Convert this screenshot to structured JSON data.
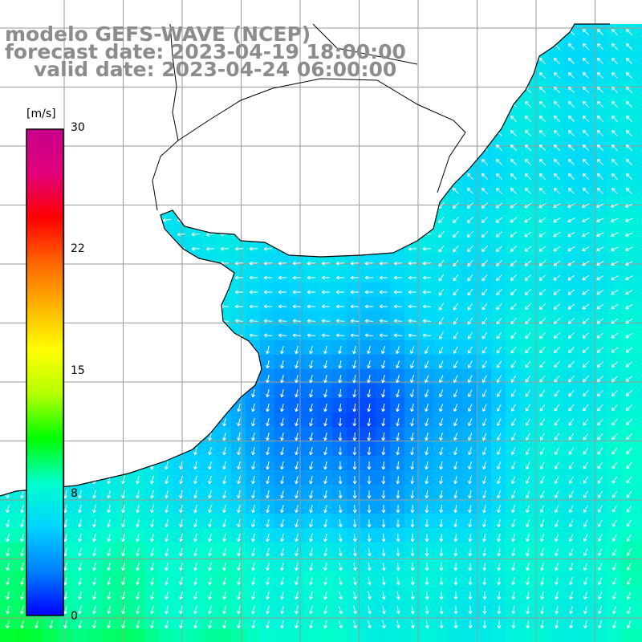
{
  "title": {
    "line1": "modelo GEFS-WAVE (NCEP)",
    "line2": "forecast date: 2023-04-19 18:00:00",
    "line3": "valid date: 2023-04-24 06:00:00"
  },
  "colorbar": {
    "unit": "[m/s]",
    "min": 0,
    "max": 30,
    "ticks": [
      "30",
      "22",
      "15",
      "8",
      "0"
    ],
    "tick_values": [
      30,
      22,
      15,
      8,
      0
    ],
    "colors": [
      "#0000ff",
      "#0080ff",
      "#00d4ff",
      "#00ffcc",
      "#00ff00",
      "#b4ff00",
      "#ffff00",
      "#ffb400",
      "#ff6400",
      "#ff0000",
      "#e0007a",
      "#c8008c"
    ]
  },
  "map": {
    "field": "10 m wind speed and direction",
    "land_color": "#ffffff",
    "coast_color": "#000000",
    "grid_color": "#9a9a9a"
  }
}
